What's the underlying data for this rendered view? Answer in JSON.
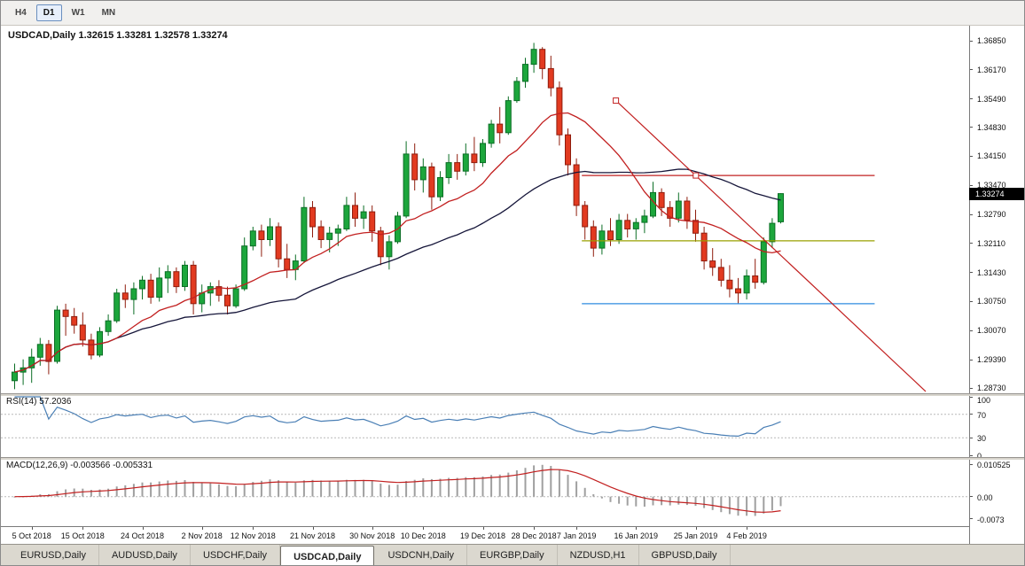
{
  "toolbar": {
    "timeframes": [
      {
        "label": "H4",
        "active": false
      },
      {
        "label": "D1",
        "active": true
      },
      {
        "label": "W1",
        "active": false
      },
      {
        "label": "MN",
        "active": false
      }
    ]
  },
  "chart": {
    "title": "USDCAD,Daily 1.32615 1.33281 1.32578 1.33274",
    "current_price": "1.33274",
    "price_axis_labels": [
      "1.36850",
      "1.36170",
      "1.35490",
      "1.34830",
      "1.34150",
      "1.33470",
      "1.32790",
      "1.32110",
      "1.31430",
      "1.30750",
      "1.30070",
      "1.29390",
      "1.28730"
    ]
  },
  "chart_data": {
    "type": "candlestick",
    "symbol": "USDCAD",
    "timeframe": "Daily",
    "ohlc": [
      [
        1.289,
        1.293,
        1.287,
        1.291
      ],
      [
        1.291,
        1.294,
        1.288,
        1.292
      ],
      [
        1.292,
        1.2965,
        1.2885,
        1.2945
      ],
      [
        1.2945,
        1.299,
        1.2925,
        1.2975
      ],
      [
        1.2975,
        1.2985,
        1.2905,
        1.2935
      ],
      [
        1.2935,
        1.3065,
        1.293,
        1.3055
      ],
      [
        1.3055,
        1.307,
        1.2995,
        1.304
      ],
      [
        1.304,
        1.306,
        1.3,
        1.302
      ],
      [
        1.302,
        1.305,
        1.297,
        1.2985
      ],
      [
        1.2985,
        1.3,
        1.294,
        1.295
      ],
      [
        1.295,
        1.3015,
        1.2945,
        1.3005
      ],
      [
        1.3005,
        1.3045,
        1.2995,
        1.303
      ],
      [
        1.303,
        1.3105,
        1.3025,
        1.3095
      ],
      [
        1.3095,
        1.3115,
        1.306,
        1.308
      ],
      [
        1.308,
        1.312,
        1.3045,
        1.3105
      ],
      [
        1.3105,
        1.3135,
        1.308,
        1.3125
      ],
      [
        1.3125,
        1.314,
        1.307,
        1.3085
      ],
      [
        1.3085,
        1.3155,
        1.3075,
        1.313
      ],
      [
        1.313,
        1.316,
        1.3095,
        1.3145
      ],
      [
        1.3145,
        1.3155,
        1.3095,
        1.311
      ],
      [
        1.311,
        1.317,
        1.31,
        1.316
      ],
      [
        1.316,
        1.317,
        1.3045,
        1.307
      ],
      [
        1.307,
        1.3115,
        1.305,
        1.3095
      ],
      [
        1.3095,
        1.312,
        1.3065,
        1.311
      ],
      [
        1.311,
        1.3125,
        1.3075,
        1.309
      ],
      [
        1.309,
        1.311,
        1.3045,
        1.3065
      ],
      [
        1.3065,
        1.3115,
        1.306,
        1.3105
      ],
      [
        1.3105,
        1.3225,
        1.31,
        1.3205
      ],
      [
        1.3205,
        1.325,
        1.3195,
        1.324
      ],
      [
        1.324,
        1.3255,
        1.318,
        1.322
      ],
      [
        1.322,
        1.327,
        1.3205,
        1.325
      ],
      [
        1.325,
        1.326,
        1.3155,
        1.3175
      ],
      [
        1.3175,
        1.321,
        1.313,
        1.315
      ],
      [
        1.315,
        1.3185,
        1.3125,
        1.317
      ],
      [
        1.317,
        1.332,
        1.3165,
        1.3295
      ],
      [
        1.3295,
        1.331,
        1.3225,
        1.325
      ],
      [
        1.325,
        1.3265,
        1.32,
        1.322
      ],
      [
        1.322,
        1.325,
        1.319,
        1.3235
      ],
      [
        1.3235,
        1.3255,
        1.3205,
        1.3245
      ],
      [
        1.3245,
        1.332,
        1.324,
        1.33
      ],
      [
        1.33,
        1.333,
        1.325,
        1.327
      ],
      [
        1.327,
        1.33,
        1.3245,
        1.3285
      ],
      [
        1.3285,
        1.33,
        1.3215,
        1.324
      ],
      [
        1.324,
        1.325,
        1.316,
        1.318
      ],
      [
        1.318,
        1.323,
        1.315,
        1.3215
      ],
      [
        1.3215,
        1.3285,
        1.321,
        1.3275
      ],
      [
        1.3275,
        1.345,
        1.327,
        1.342
      ],
      [
        1.342,
        1.3445,
        1.3335,
        1.336
      ],
      [
        1.336,
        1.341,
        1.333,
        1.339
      ],
      [
        1.339,
        1.34,
        1.329,
        1.332
      ],
      [
        1.332,
        1.338,
        1.331,
        1.3365
      ],
      [
        1.3365,
        1.342,
        1.335,
        1.34
      ],
      [
        1.34,
        1.342,
        1.336,
        1.338
      ],
      [
        1.338,
        1.3445,
        1.337,
        1.342
      ],
      [
        1.342,
        1.346,
        1.338,
        1.34
      ],
      [
        1.34,
        1.3455,
        1.339,
        1.3445
      ],
      [
        1.3445,
        1.35,
        1.3435,
        1.349
      ],
      [
        1.349,
        1.353,
        1.3445,
        1.347
      ],
      [
        1.347,
        1.3555,
        1.3465,
        1.3545
      ],
      [
        1.3545,
        1.36,
        1.354,
        1.359
      ],
      [
        1.359,
        1.3645,
        1.3575,
        1.363
      ],
      [
        1.363,
        1.368,
        1.361,
        1.3665
      ],
      [
        1.3665,
        1.367,
        1.3595,
        1.362
      ],
      [
        1.362,
        1.365,
        1.3555,
        1.3575
      ],
      [
        1.3575,
        1.359,
        1.344,
        1.3465
      ],
      [
        1.3465,
        1.348,
        1.337,
        1.3395
      ],
      [
        1.3395,
        1.341,
        1.3275,
        1.33
      ],
      [
        1.33,
        1.331,
        1.322,
        1.325
      ],
      [
        1.325,
        1.3265,
        1.318,
        1.32
      ],
      [
        1.32,
        1.3255,
        1.3185,
        1.324
      ],
      [
        1.324,
        1.327,
        1.3205,
        1.322
      ],
      [
        1.322,
        1.328,
        1.321,
        1.3265
      ],
      [
        1.3265,
        1.328,
        1.3225,
        1.3245
      ],
      [
        1.3245,
        1.327,
        1.322,
        1.326
      ],
      [
        1.326,
        1.329,
        1.3235,
        1.3275
      ],
      [
        1.3275,
        1.3355,
        1.327,
        1.333
      ],
      [
        1.333,
        1.334,
        1.3275,
        1.3295
      ],
      [
        1.3295,
        1.331,
        1.325,
        1.327
      ],
      [
        1.327,
        1.333,
        1.326,
        1.331
      ],
      [
        1.331,
        1.332,
        1.3245,
        1.3265
      ],
      [
        1.3265,
        1.329,
        1.3215,
        1.3235
      ],
      [
        1.3235,
        1.325,
        1.315,
        1.317
      ],
      [
        1.317,
        1.32,
        1.3135,
        1.3155
      ],
      [
        1.3155,
        1.3175,
        1.311,
        1.3125
      ],
      [
        1.3125,
        1.316,
        1.3085,
        1.3105
      ],
      [
        1.3105,
        1.313,
        1.307,
        1.3095
      ],
      [
        1.3095,
        1.315,
        1.308,
        1.3135
      ],
      [
        1.3135,
        1.3175,
        1.3105,
        1.312
      ],
      [
        1.312,
        1.3225,
        1.3115,
        1.3215
      ],
      [
        1.3215,
        1.327,
        1.32,
        1.3258
      ],
      [
        1.32615,
        1.33281,
        1.32578,
        1.33274
      ]
    ],
    "x_labels": [
      {
        "i": 2,
        "label": "5 Oct 2018"
      },
      {
        "i": 8,
        "label": "15 Oct 2018"
      },
      {
        "i": 15,
        "label": "24 Oct 2018"
      },
      {
        "i": 22,
        "label": "2 Nov 2018"
      },
      {
        "i": 28,
        "label": "12 Nov 2018"
      },
      {
        "i": 35,
        "label": "21 Nov 2018"
      },
      {
        "i": 42,
        "label": "30 Nov 2018"
      },
      {
        "i": 48,
        "label": "10 Dec 2018"
      },
      {
        "i": 55,
        "label": "19 Dec 2018"
      },
      {
        "i": 61,
        "label": "28 Dec 2018"
      },
      {
        "i": 66,
        "label": "7 Jan 2019"
      },
      {
        "i": 73,
        "label": "16 Jan 2019"
      },
      {
        "i": 80,
        "label": "25 Jan 2019"
      },
      {
        "i": 86,
        "label": "4 Feb 2019"
      }
    ],
    "overlays": {
      "ma_fast": {
        "period": 13,
        "color": "#c22020"
      },
      "ma_slow": {
        "period": 34,
        "color": "#16163a"
      },
      "trendline": {
        "i1": 71,
        "p1": 1.3545,
        "i2": 107.4,
        "p2": 1.2865,
        "color": "#c22020",
        "markers": [
          {
            "i": 71,
            "p": 1.3545
          },
          {
            "i": 80.4,
            "p": 1.337
          }
        ]
      },
      "hlines": [
        {
          "price": 1.337,
          "color": "#c22020",
          "from_i": 67,
          "to_i": 101.4
        },
        {
          "price": 1.3217,
          "color": "#9aa000",
          "from_i": 67,
          "to_i": 101.4
        },
        {
          "price": 1.307,
          "color": "#2e8be0",
          "from_i": 67,
          "to_i": 101.4
        }
      ]
    },
    "indicators": {
      "rsi": {
        "label": "RSI(14) 57.2036",
        "period": 14,
        "current": "57.2036",
        "levels": [
          70,
          30
        ],
        "scale_labels": [
          "100",
          "70",
          "30",
          "0"
        ],
        "color": "#4a7fb5"
      },
      "macd": {
        "label": "MACD(12,26,9) -0.003566 -0.005331",
        "fast": 12,
        "slow": 26,
        "signal": 9,
        "current_macd": "-0.003566",
        "current_signal": "-0.005331",
        "scale_labels": [
          "0.010525",
          "0.00",
          "-0.0073"
        ],
        "hist_color": "#a0a0a0",
        "signal_color": "#c22020"
      }
    },
    "candle_colors": {
      "bull": "#1ca63c",
      "bull_border": "#0b6e25",
      "bear": "#e23a20",
      "bear_border": "#8f1d0e"
    }
  },
  "tabs": {
    "items": [
      {
        "label": "EURUSD,Daily",
        "active": false
      },
      {
        "label": "AUDUSD,Daily",
        "active": false
      },
      {
        "label": "USDCHF,Daily",
        "active": false
      },
      {
        "label": "USDCAD,Daily",
        "active": true
      },
      {
        "label": "USDCNH,Daily",
        "active": false
      },
      {
        "label": "EURGBP,Daily",
        "active": false
      },
      {
        "label": "NZDUSD,H1",
        "active": false
      },
      {
        "label": "GBPUSD,Daily",
        "active": false
      }
    ]
  }
}
